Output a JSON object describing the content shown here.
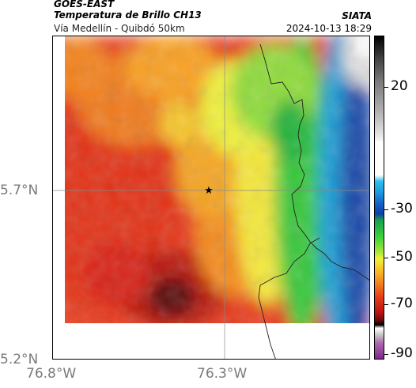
{
  "header": {
    "satellite": "GOES-EAST",
    "product": "Temperatura de Brillo CH13",
    "route": "Vía Medellín - Quibdó 50km",
    "agency": "SIATA",
    "datetime": "2024-10-13 18:29"
  },
  "axes": {
    "lat_ticks": [
      "5.7°N",
      "5.2°N"
    ],
    "lon_ticks": [
      "76.8°W",
      "76.3°W"
    ]
  },
  "colorbar": {
    "ticks": [
      "20",
      "-30",
      "-50",
      "-70",
      "-90"
    ]
  },
  "marker": {
    "symbol": "★"
  }
}
